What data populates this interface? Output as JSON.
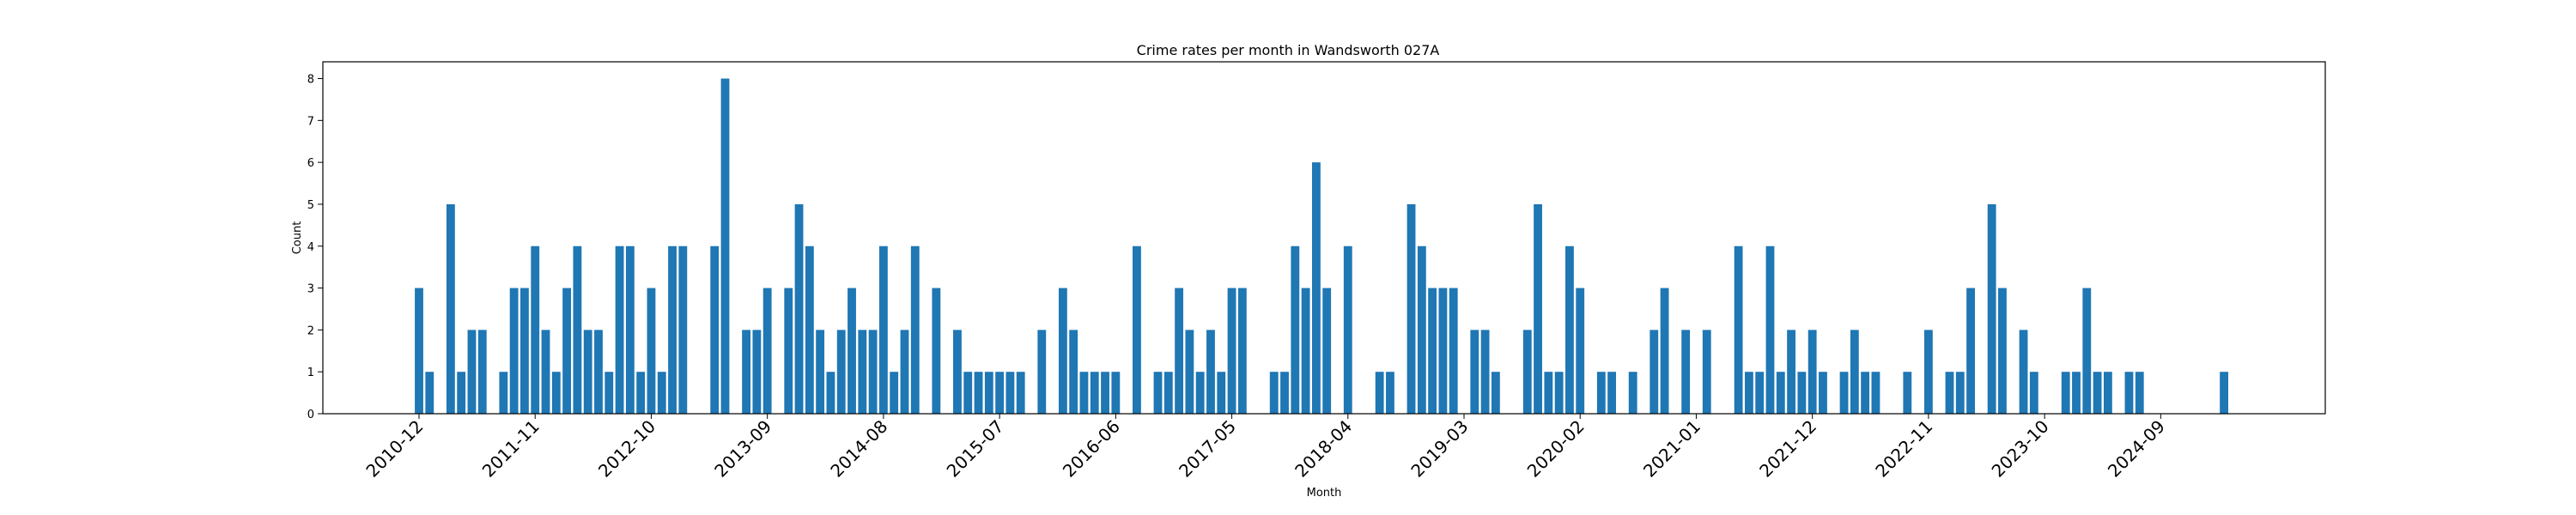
{
  "chart_data": {
    "type": "bar",
    "title": "Crime rates per month in Wandsworth 027A",
    "xlabel": "Month",
    "ylabel": "Count",
    "ylim": [
      0,
      8.4
    ],
    "yticks": [
      0,
      1,
      2,
      3,
      4,
      5,
      6,
      7,
      8
    ],
    "xtick_labels": [
      "2010-12",
      "2011-11",
      "2012-10",
      "2013-09",
      "2014-08",
      "2015-07",
      "2016-06",
      "2017-05",
      "2018-04",
      "2019-03",
      "2020-02",
      "2021-01",
      "2021-12",
      "2022-11",
      "2023-10",
      "2024-09"
    ],
    "bar_color": "#1f77b4",
    "grid": false,
    "values": [
      3,
      1,
      0,
      5,
      1,
      2,
      2,
      0,
      1,
      3,
      3,
      4,
      2,
      1,
      3,
      4,
      2,
      2,
      1,
      4,
      4,
      1,
      3,
      1,
      4,
      4,
      0,
      0,
      4,
      8,
      0,
      2,
      2,
      3,
      0,
      3,
      5,
      4,
      2,
      1,
      2,
      3,
      2,
      2,
      4,
      1,
      2,
      4,
      0,
      3,
      0,
      2,
      1,
      1,
      1,
      1,
      1,
      1,
      0,
      2,
      0,
      3,
      2,
      1,
      1,
      1,
      1,
      0,
      4,
      0,
      1,
      1,
      3,
      2,
      1,
      2,
      1,
      3,
      3,
      0,
      0,
      1,
      1,
      4,
      3,
      6,
      3,
      0,
      4,
      0,
      0,
      1,
      1,
      0,
      5,
      4,
      3,
      3,
      3,
      0,
      2,
      2,
      1,
      0,
      0,
      2,
      5,
      1,
      1,
      4,
      3,
      0,
      1,
      1,
      0,
      1,
      0,
      2,
      3,
      0,
      2,
      0,
      2,
      0,
      0,
      4,
      1,
      1,
      4,
      1,
      2,
      1,
      2,
      1,
      0,
      1,
      2,
      1,
      1,
      0,
      0,
      1,
      0,
      2,
      0,
      1,
      1,
      3,
      0,
      5,
      3,
      0,
      2,
      1,
      0,
      0,
      1,
      1,
      3,
      1,
      1,
      0,
      1,
      1,
      0,
      0,
      0,
      0,
      0,
      0,
      0,
      1
    ]
  }
}
